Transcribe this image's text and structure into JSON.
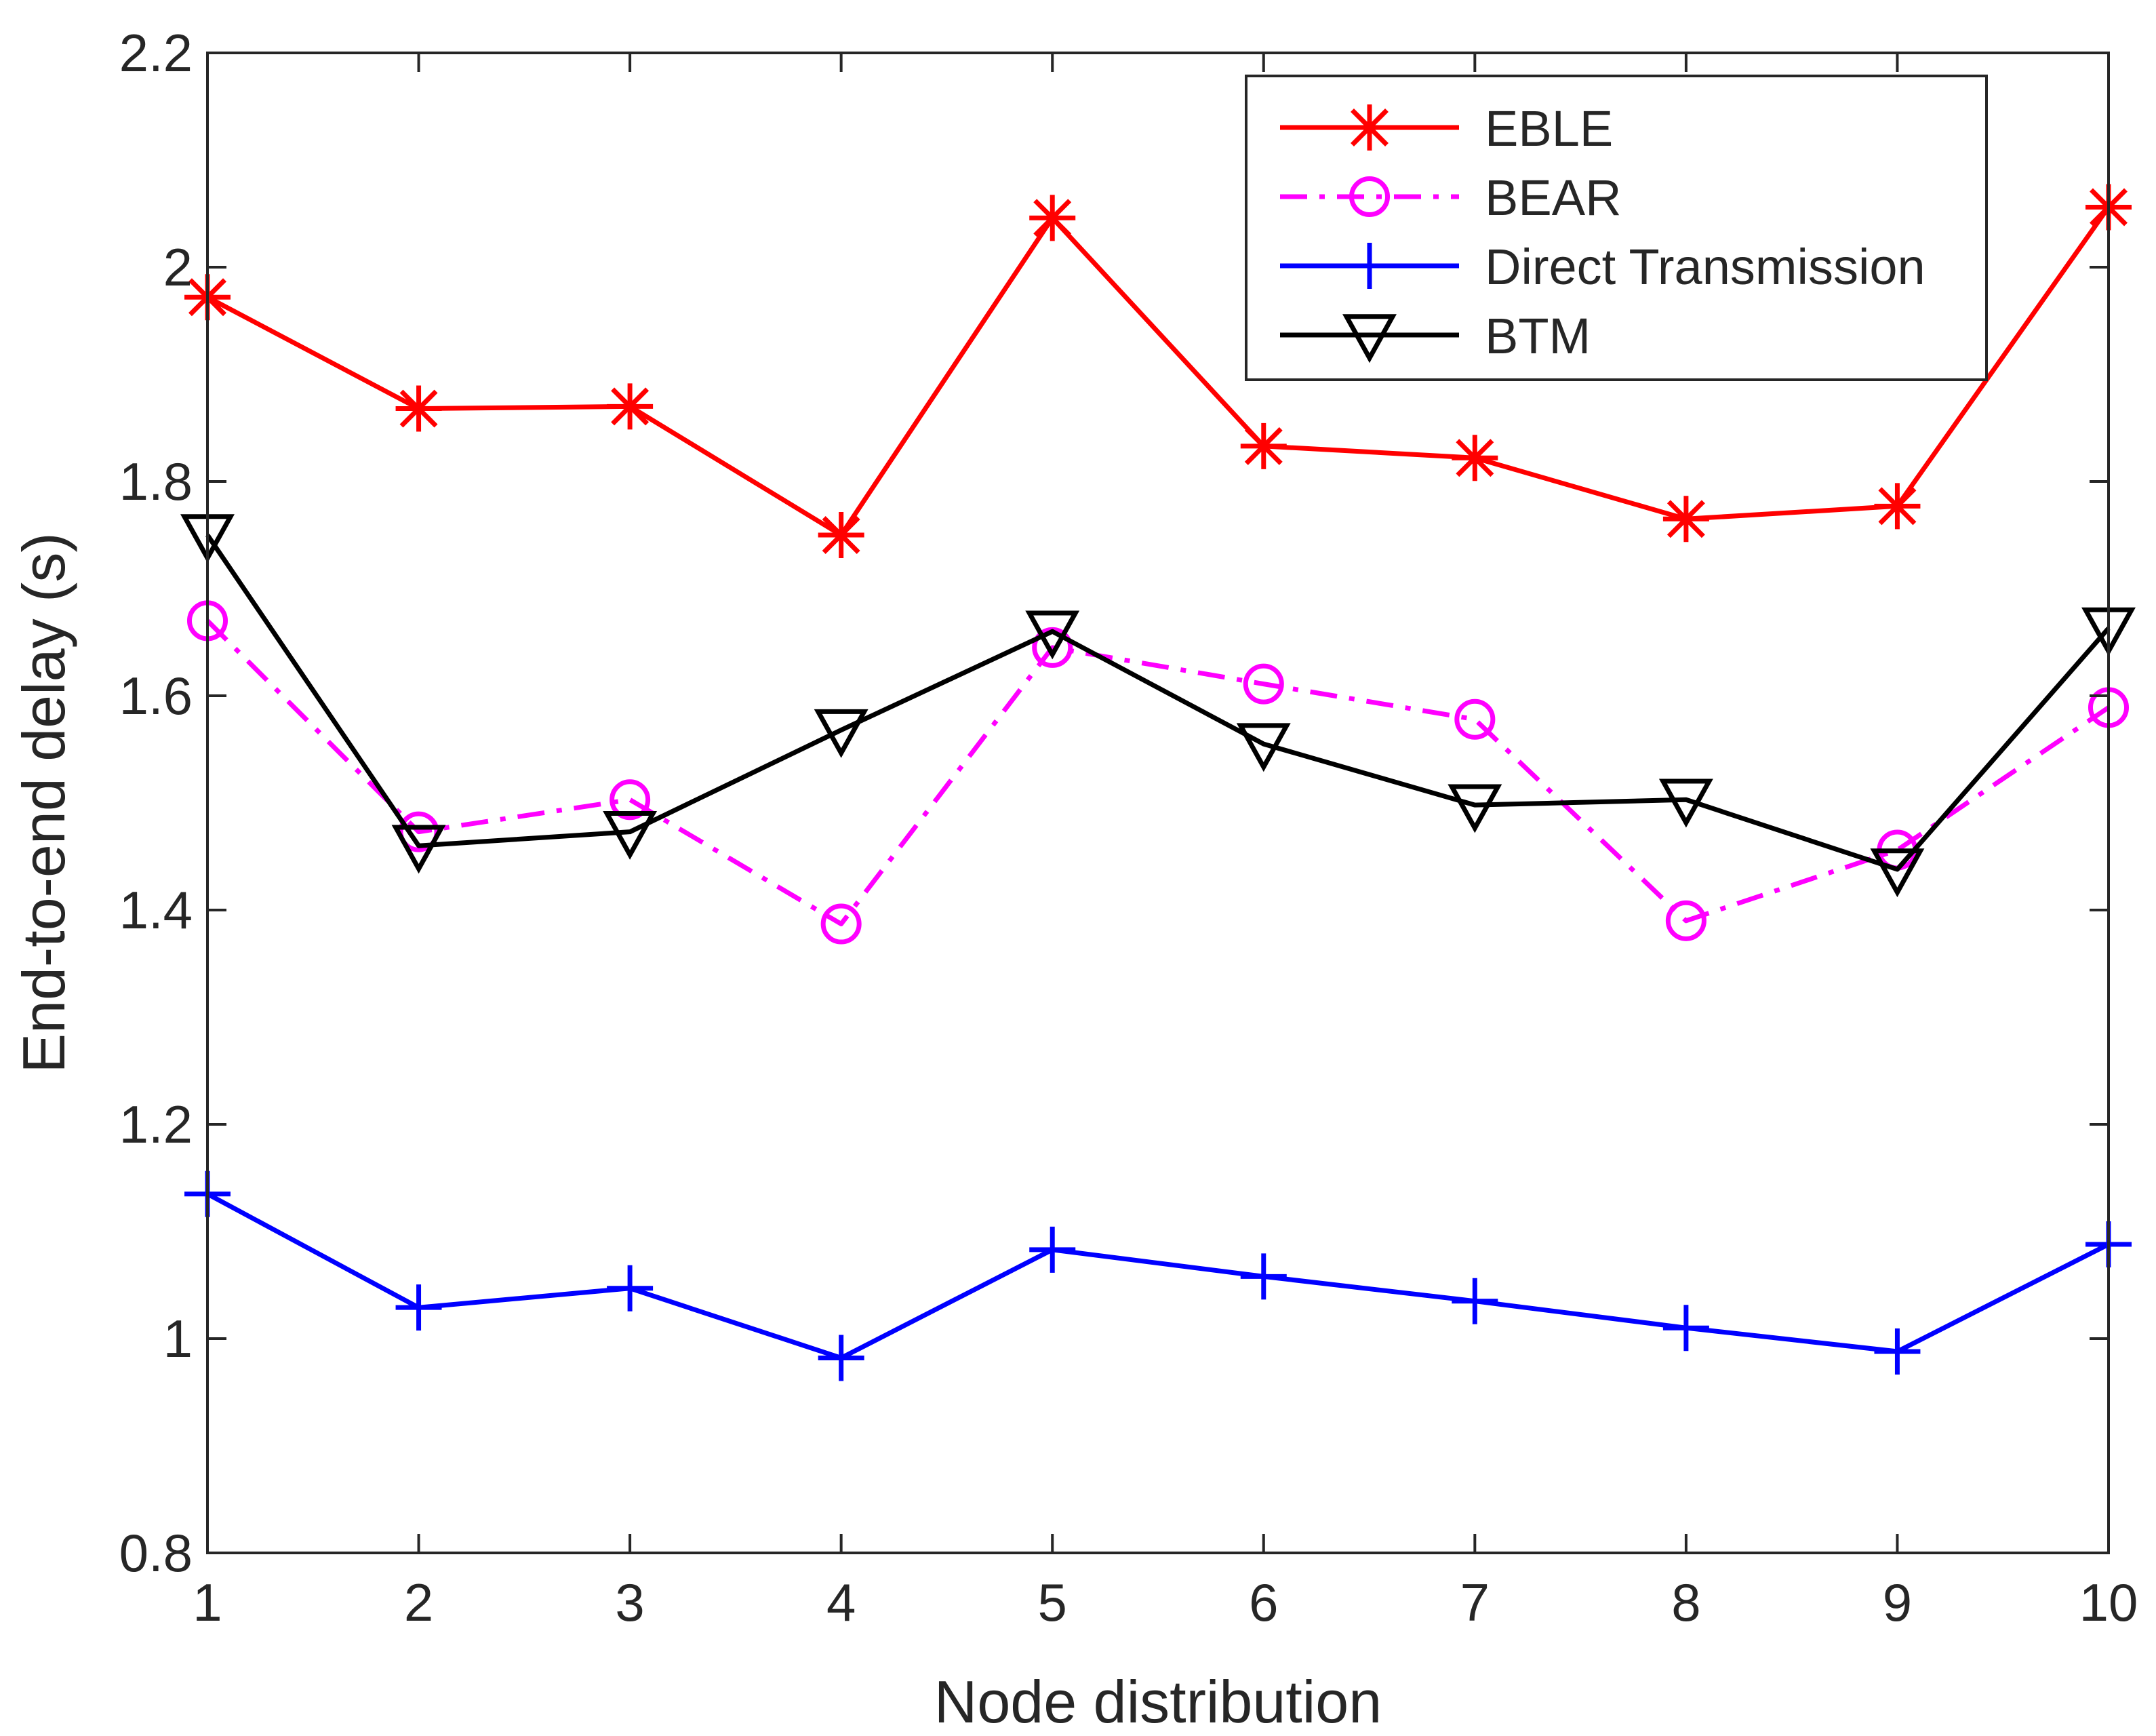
{
  "chart_data": {
    "type": "line",
    "xlabel": "Node distribution",
    "ylabel": "End-to-end delay (s)",
    "xlim": [
      1,
      10
    ],
    "ylim": [
      0.8,
      2.2
    ],
    "x": [
      1,
      2,
      3,
      4,
      5,
      6,
      7,
      8,
      9,
      10
    ],
    "xticks": [
      "1",
      "2",
      "3",
      "4",
      "5",
      "6",
      "7",
      "8",
      "9",
      "10"
    ],
    "yticks": [
      "0.8",
      "1",
      "1.2",
      "1.4",
      "1.6",
      "1.8",
      "2",
      "2.2"
    ],
    "grid": false,
    "legend_position": "top-right",
    "series": [
      {
        "name": "EBLE",
        "color": "#ff0000",
        "line_style": "solid",
        "marker": "asterisk",
        "values": [
          1.972,
          1.868,
          1.87,
          1.75,
          2.046,
          1.833,
          1.822,
          1.765,
          1.777,
          2.056
        ]
      },
      {
        "name": "BEAR",
        "color": "#ff00ff",
        "line_style": "dash-dot",
        "marker": "circle",
        "values": [
          1.67,
          1.473,
          1.503,
          1.387,
          1.645,
          1.611,
          1.578,
          1.39,
          1.456,
          1.589
        ]
      },
      {
        "name": "Direct Transmission",
        "color": "#0000ff",
        "line_style": "solid",
        "marker": "plus",
        "values": [
          1.135,
          1.029,
          1.047,
          0.982,
          1.083,
          1.058,
          1.035,
          1.01,
          0.988,
          1.088
        ]
      },
      {
        "name": "BTM",
        "color": "#000000",
        "line_style": "solid",
        "marker": "triangle-down",
        "values": [
          1.75,
          1.46,
          1.473,
          1.568,
          1.66,
          1.555,
          1.498,
          1.503,
          1.438,
          1.663
        ]
      }
    ]
  }
}
